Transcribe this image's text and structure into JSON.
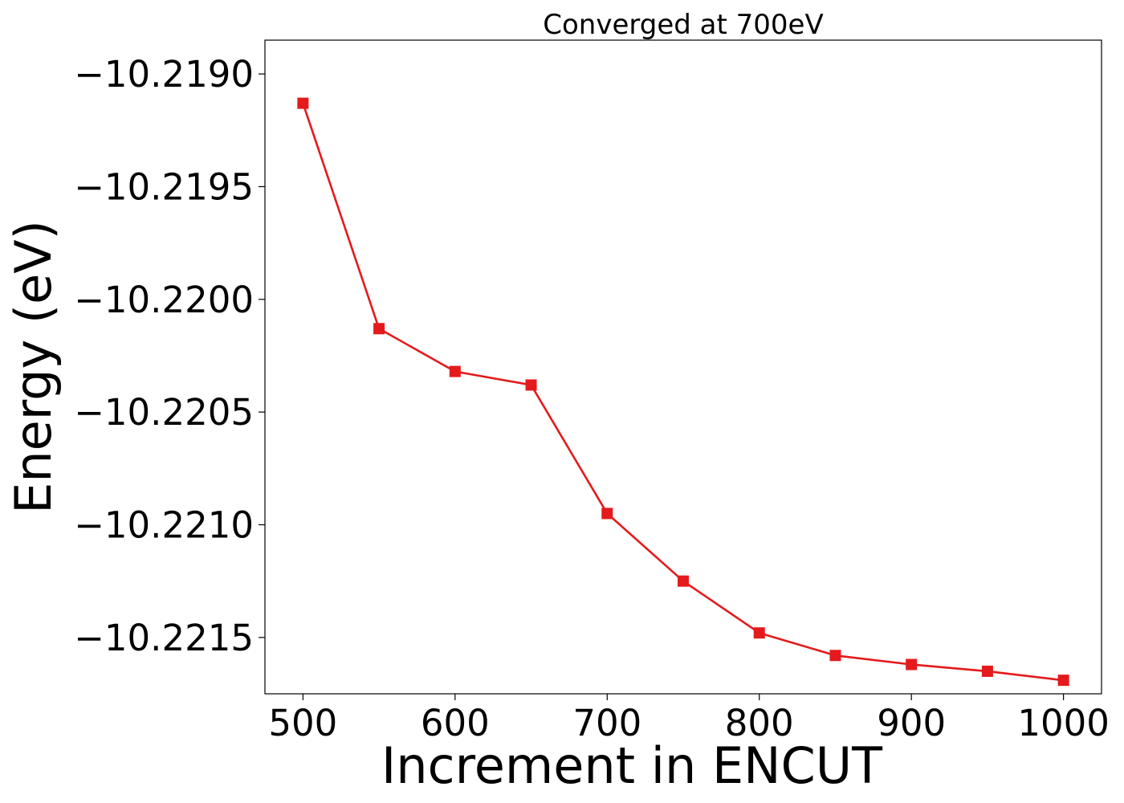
{
  "chart_data": {
    "type": "line",
    "title": "Converged at 700eV",
    "xlabel": "Increment in ENCUT",
    "ylabel": "Energy (eV)",
    "x": [
      500,
      550,
      600,
      650,
      700,
      750,
      800,
      850,
      900,
      950,
      1000
    ],
    "series": [
      {
        "values": [
          -10.21913,
          -10.22013,
          -10.22032,
          -10.22038,
          -10.22095,
          -10.22125,
          -10.22148,
          -10.22158,
          -10.22162,
          -10.22165,
          -10.22169
        ],
        "color": "#e41a1c",
        "marker": "square"
      }
    ],
    "xlim": [
      475,
      1025
    ],
    "ylim": [
      -10.22175,
      -10.21885
    ],
    "xticks": [
      500,
      600,
      700,
      800,
      900,
      1000
    ],
    "xtick_labels": [
      "500",
      "600",
      "700",
      "800",
      "900",
      "1000"
    ],
    "yticks": [
      -10.219,
      -10.2195,
      -10.22,
      -10.2205,
      -10.221,
      -10.2215
    ],
    "ytick_labels": [
      "−10.2190",
      "−10.2195",
      "−10.2200",
      "−10.2205",
      "−10.2210",
      "−10.2215"
    ],
    "grid": false,
    "legend": "none"
  }
}
